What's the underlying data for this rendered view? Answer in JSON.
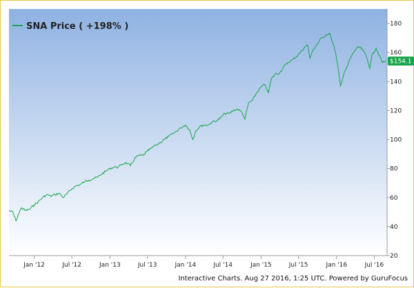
{
  "chart_data": {
    "type": "line",
    "legend": "SNA Price ( +198% )",
    "legend_position": "top-left",
    "line_color": "#1aa54b",
    "background_gradient": [
      "#8fb2e2",
      "#ffffff"
    ],
    "grid": false,
    "ylim": [
      20,
      190
    ],
    "yticks": [
      20,
      40,
      60,
      80,
      100,
      120,
      140,
      160,
      180
    ],
    "ytick_labels": [
      "20",
      "40",
      "60",
      "80",
      "100",
      "120",
      "140",
      "160",
      "180"
    ],
    "xlim": [
      "2011-09-01",
      "2016-09-01"
    ],
    "xticks": [
      "2012-01-01",
      "2012-07-01",
      "2013-01-01",
      "2013-07-01",
      "2014-01-01",
      "2014-07-01",
      "2015-01-01",
      "2015-07-01",
      "2016-01-01",
      "2016-07-01"
    ],
    "xtick_labels": [
      "Jan '12",
      "Jul '12",
      "Jan '13",
      "Jul '13",
      "Jan '14",
      "Jul '14",
      "Jan '15",
      "Jul '15",
      "Jan '16",
      "Jul '16"
    ],
    "last_value_label": "$154.1",
    "last_value": 154.1,
    "series": [
      {
        "points": [
          [
            "2011-09-01",
            51
          ],
          [
            "2011-09-20",
            50
          ],
          [
            "2011-10-05",
            44
          ],
          [
            "2011-10-15",
            48
          ],
          [
            "2011-11-01",
            53
          ],
          [
            "2011-11-20",
            51
          ],
          [
            "2011-12-10",
            52
          ],
          [
            "2011-12-31",
            55
          ],
          [
            "2012-01-20",
            57
          ],
          [
            "2012-02-10",
            60
          ],
          [
            "2012-03-01",
            62
          ],
          [
            "2012-03-20",
            61
          ],
          [
            "2012-04-10",
            62
          ],
          [
            "2012-05-01",
            63
          ],
          [
            "2012-05-20",
            60
          ],
          [
            "2012-06-10",
            63
          ],
          [
            "2012-07-01",
            66
          ],
          [
            "2012-07-20",
            68
          ],
          [
            "2012-08-10",
            69
          ],
          [
            "2012-09-01",
            71
          ],
          [
            "2012-09-20",
            72
          ],
          [
            "2012-10-10",
            73
          ],
          [
            "2012-11-01",
            74
          ],
          [
            "2012-11-20",
            76
          ],
          [
            "2012-12-10",
            78
          ],
          [
            "2013-01-01",
            80
          ],
          [
            "2013-01-20",
            81
          ],
          [
            "2013-02-10",
            81
          ],
          [
            "2013-03-01",
            83
          ],
          [
            "2013-03-20",
            84
          ],
          [
            "2013-04-10",
            82
          ],
          [
            "2013-05-01",
            87
          ],
          [
            "2013-05-20",
            89
          ],
          [
            "2013-06-10",
            89
          ],
          [
            "2013-07-01",
            92
          ],
          [
            "2013-07-20",
            94
          ],
          [
            "2013-08-10",
            96
          ],
          [
            "2013-09-01",
            98
          ],
          [
            "2013-09-20",
            100
          ],
          [
            "2013-10-10",
            102
          ],
          [
            "2013-11-01",
            104
          ],
          [
            "2013-11-20",
            106
          ],
          [
            "2013-12-10",
            108
          ],
          [
            "2013-12-31",
            110
          ],
          [
            "2014-01-20",
            107
          ],
          [
            "2014-02-05",
            100
          ],
          [
            "2014-02-20",
            106
          ],
          [
            "2014-03-10",
            109
          ],
          [
            "2014-04-01",
            110
          ],
          [
            "2014-04-20",
            110
          ],
          [
            "2014-05-10",
            112
          ],
          [
            "2014-06-01",
            113
          ],
          [
            "2014-06-20",
            115
          ],
          [
            "2014-07-10",
            118
          ],
          [
            "2014-08-01",
            118
          ],
          [
            "2014-08-20",
            120
          ],
          [
            "2014-09-10",
            121
          ],
          [
            "2014-10-01",
            119
          ],
          [
            "2014-10-15",
            114
          ],
          [
            "2014-11-01",
            125
          ],
          [
            "2014-11-20",
            127
          ],
          [
            "2014-12-10",
            132
          ],
          [
            "2014-12-31",
            136
          ],
          [
            "2015-01-20",
            138
          ],
          [
            "2015-02-05",
            132
          ],
          [
            "2015-02-20",
            142
          ],
          [
            "2015-03-10",
            145
          ],
          [
            "2015-04-01",
            146
          ],
          [
            "2015-04-20",
            150
          ],
          [
            "2015-05-10",
            153
          ],
          [
            "2015-06-01",
            155
          ],
          [
            "2015-06-20",
            157
          ],
          [
            "2015-07-10",
            160
          ],
          [
            "2015-08-01",
            164
          ],
          [
            "2015-08-15",
            165
          ],
          [
            "2015-08-25",
            156
          ],
          [
            "2015-09-10",
            162
          ],
          [
            "2015-10-01",
            166
          ],
          [
            "2015-10-20",
            170
          ],
          [
            "2015-11-10",
            172
          ],
          [
            "2015-12-01",
            173
          ],
          [
            "2015-12-10",
            168
          ],
          [
            "2015-12-25",
            161
          ],
          [
            "2016-01-10",
            148
          ],
          [
            "2016-01-20",
            137
          ],
          [
            "2016-02-05",
            145
          ],
          [
            "2016-02-20",
            150
          ],
          [
            "2016-03-10",
            157
          ],
          [
            "2016-04-01",
            162
          ],
          [
            "2016-04-20",
            164
          ],
          [
            "2016-05-10",
            161
          ],
          [
            "2016-05-25",
            157
          ],
          [
            "2016-06-10",
            149
          ],
          [
            "2016-06-20",
            158
          ],
          [
            "2016-07-10",
            163
          ],
          [
            "2016-07-25",
            158
          ],
          [
            "2016-08-10",
            153
          ],
          [
            "2016-08-27",
            154.1
          ]
        ]
      }
    ]
  },
  "footer": {
    "credit": "Interactive Charts. Aug 27 2016, 1:25 UTC. Powered by GuruFocus"
  }
}
